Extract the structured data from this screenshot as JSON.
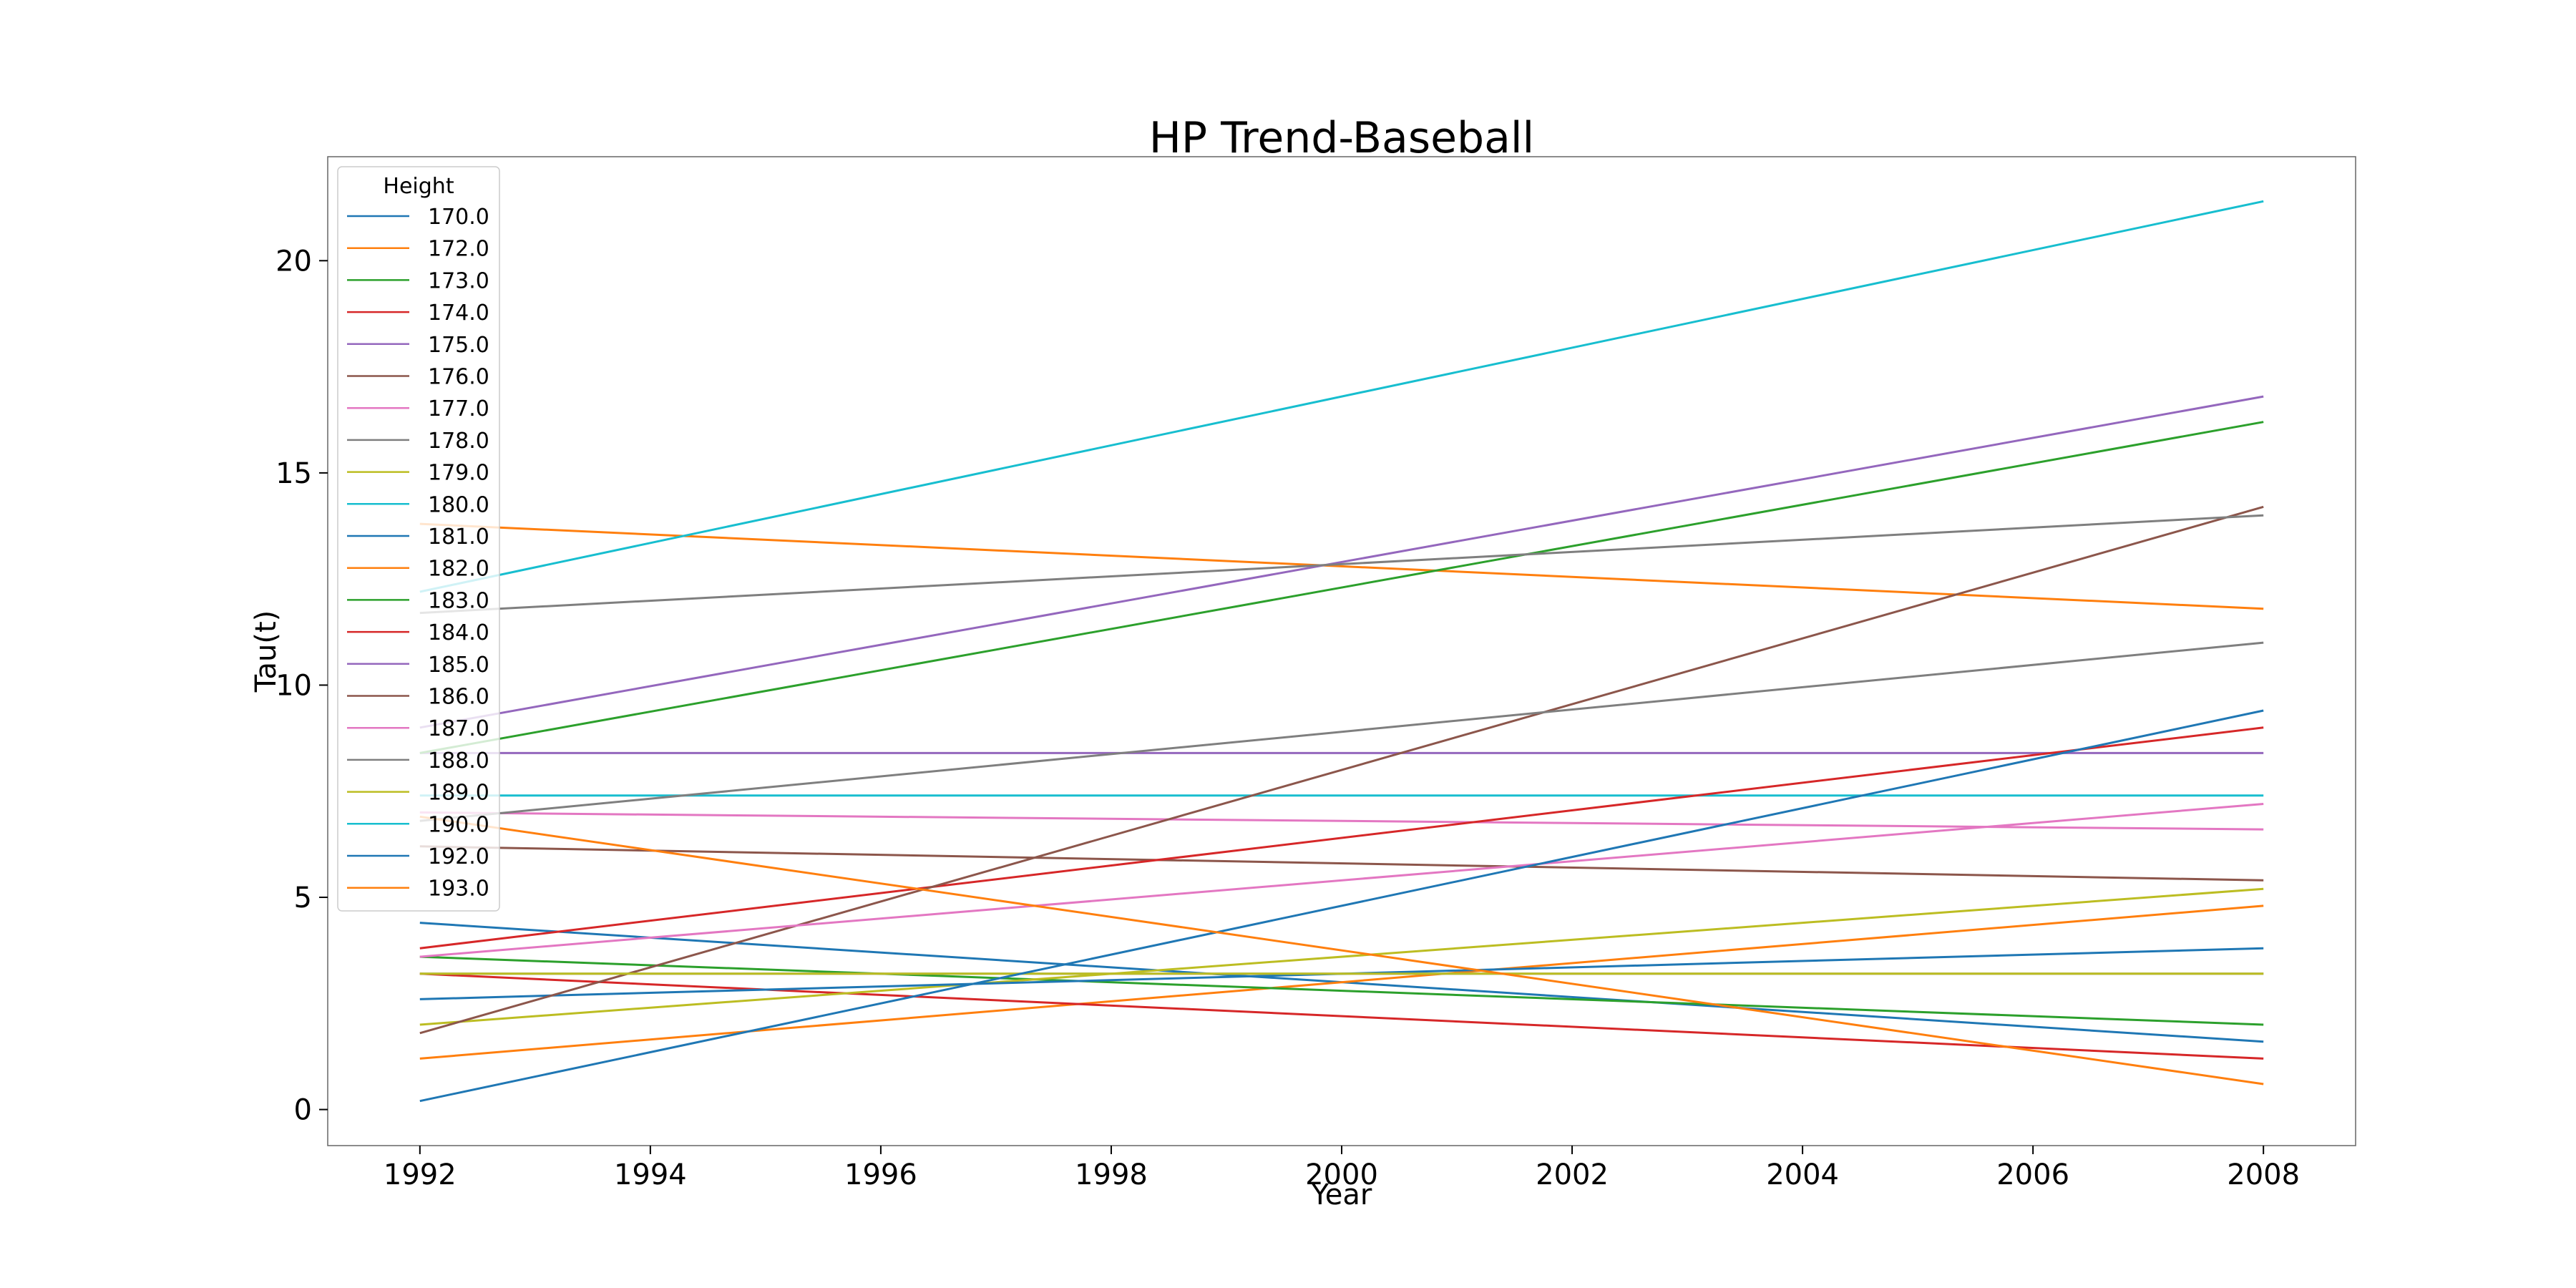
{
  "chart_data": {
    "type": "line",
    "title": "HP Trend-Baseball",
    "xlabel": "Year",
    "ylabel": "Tau(t)",
    "xlim": [
      1991.2,
      2008.8
    ],
    "ylim": [
      -0.85,
      22.45
    ],
    "x_ticks": [
      1992,
      1994,
      1996,
      1998,
      2000,
      2002,
      2004,
      2006,
      2008
    ],
    "y_ticks": [
      0,
      5,
      10,
      15,
      20
    ],
    "grid": false,
    "legend": {
      "title": "Height",
      "position": "top-left"
    },
    "x": [
      1992,
      2008
    ],
    "series": [
      {
        "name": "170.0",
        "color": "#1f77b4",
        "values": [
          4.4,
          1.6
        ]
      },
      {
        "name": "172.0",
        "color": "#ff7f0e",
        "values": [
          1.2,
          4.8
        ]
      },
      {
        "name": "173.0",
        "color": "#2ca02c",
        "values": [
          3.6,
          2.0
        ]
      },
      {
        "name": "174.0",
        "color": "#d62728",
        "values": [
          3.2,
          1.2
        ]
      },
      {
        "name": "175.0",
        "color": "#9467bd",
        "values": [
          8.4,
          8.4
        ]
      },
      {
        "name": "176.0",
        "color": "#8c564b",
        "values": [
          6.2,
          5.4
        ]
      },
      {
        "name": "177.0",
        "color": "#e377c2",
        "values": [
          7.0,
          6.6
        ]
      },
      {
        "name": "178.0",
        "color": "#7f7f7f",
        "values": [
          3.2,
          3.2
        ]
      },
      {
        "name": "179.0",
        "color": "#bcbd22",
        "values": [
          2.0,
          5.2
        ]
      },
      {
        "name": "180.0",
        "color": "#17becf",
        "values": [
          7.4,
          7.4
        ]
      },
      {
        "name": "181.0",
        "color": "#1f77b4",
        "values": [
          2.6,
          3.8
        ]
      },
      {
        "name": "182.0",
        "color": "#ff7f0e",
        "values": [
          13.8,
          11.8
        ]
      },
      {
        "name": "183.0",
        "color": "#2ca02c",
        "values": [
          8.4,
          16.2
        ]
      },
      {
        "name": "184.0",
        "color": "#d62728",
        "values": [
          3.8,
          9.0
        ]
      },
      {
        "name": "185.0",
        "color": "#9467bd",
        "values": [
          9.0,
          16.8
        ]
      },
      {
        "name": "186.0",
        "color": "#8c564b",
        "values": [
          1.8,
          14.2
        ]
      },
      {
        "name": "187.0",
        "color": "#e377c2",
        "values": [
          3.6,
          7.2
        ]
      },
      {
        "name": "188.0",
        "color": "#7f7f7f",
        "values": [
          6.8,
          11.0
        ]
      },
      {
        "name": "189.0",
        "color": "#bcbd22",
        "values": [
          3.2,
          3.2
        ]
      },
      {
        "name": "190.0",
        "color": "#17becf",
        "values": [
          12.2,
          21.4
        ]
      },
      {
        "name": "192.0",
        "color": "#1f77b4",
        "values": [
          0.2,
          9.4
        ]
      },
      {
        "name": "193.0",
        "color": "#ff7f0e",
        "values": [
          6.9,
          0.6
        ]
      },
      {
        "name": "",
        "color": "#7f7f7f",
        "values": [
          11.7,
          14.0
        ]
      }
    ]
  }
}
